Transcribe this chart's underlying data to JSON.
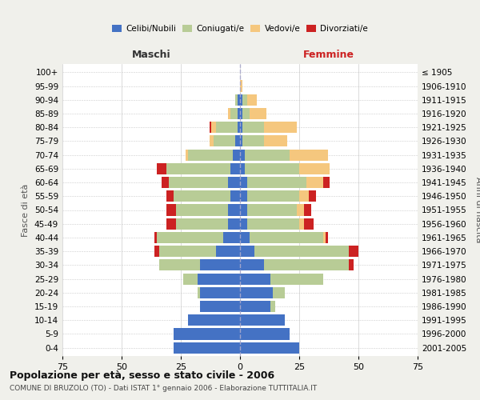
{
  "age_groups": [
    "0-4",
    "5-9",
    "10-14",
    "15-19",
    "20-24",
    "25-29",
    "30-34",
    "35-39",
    "40-44",
    "45-49",
    "50-54",
    "55-59",
    "60-64",
    "65-69",
    "70-74",
    "75-79",
    "80-84",
    "85-89",
    "90-94",
    "95-99",
    "100+"
  ],
  "birth_years": [
    "2001-2005",
    "1996-2000",
    "1991-1995",
    "1986-1990",
    "1981-1985",
    "1976-1980",
    "1971-1975",
    "1966-1970",
    "1961-1965",
    "1956-1960",
    "1951-1955",
    "1946-1950",
    "1941-1945",
    "1936-1940",
    "1931-1935",
    "1926-1930",
    "1921-1925",
    "1916-1920",
    "1911-1915",
    "1906-1910",
    "≤ 1905"
  ],
  "maschi": {
    "celibi": [
      28,
      28,
      22,
      17,
      17,
      18,
      17,
      10,
      7,
      5,
      5,
      4,
      5,
      4,
      3,
      2,
      1,
      1,
      1,
      0,
      0
    ],
    "coniugati": [
      0,
      0,
      0,
      0,
      1,
      6,
      17,
      24,
      28,
      22,
      22,
      24,
      25,
      27,
      19,
      9,
      9,
      3,
      1,
      0,
      0
    ],
    "vedovi": [
      0,
      0,
      0,
      0,
      0,
      0,
      0,
      0,
      0,
      0,
      0,
      0,
      0,
      0,
      1,
      2,
      2,
      1,
      0,
      0,
      0
    ],
    "divorziati": [
      0,
      0,
      0,
      0,
      0,
      0,
      0,
      2,
      1,
      4,
      4,
      3,
      3,
      4,
      0,
      0,
      1,
      0,
      0,
      0,
      0
    ]
  },
  "femmine": {
    "nubili": [
      25,
      21,
      19,
      13,
      14,
      13,
      10,
      6,
      4,
      3,
      3,
      3,
      3,
      2,
      2,
      1,
      1,
      1,
      1,
      0,
      0
    ],
    "coniugate": [
      0,
      0,
      0,
      2,
      5,
      22,
      36,
      40,
      31,
      22,
      21,
      22,
      25,
      23,
      19,
      9,
      9,
      3,
      2,
      0,
      0
    ],
    "vedove": [
      0,
      0,
      0,
      0,
      0,
      0,
      0,
      0,
      1,
      2,
      3,
      4,
      7,
      13,
      16,
      10,
      14,
      7,
      4,
      1,
      0
    ],
    "divorziate": [
      0,
      0,
      0,
      0,
      0,
      0,
      2,
      4,
      1,
      4,
      3,
      3,
      3,
      0,
      0,
      0,
      0,
      0,
      0,
      0,
      0
    ]
  },
  "colors": {
    "celibi": "#4472c4",
    "coniugati": "#b8cc96",
    "vedovi": "#f5c77e",
    "divorziati": "#cc2222"
  },
  "xlim": 75,
  "title": "Popolazione per età, sesso e stato civile - 2006",
  "subtitle": "COMUNE DI BRUZOLO (TO) - Dati ISTAT 1° gennaio 2006 - Elaborazione TUTTITALIA.IT",
  "ylabel_left": "Fasce di età",
  "ylabel_right": "Anni di nascita",
  "xlabel_maschi": "Maschi",
  "xlabel_femmine": "Femmine",
  "bg_color": "#f0f0eb",
  "plot_bg": "#ffffff"
}
